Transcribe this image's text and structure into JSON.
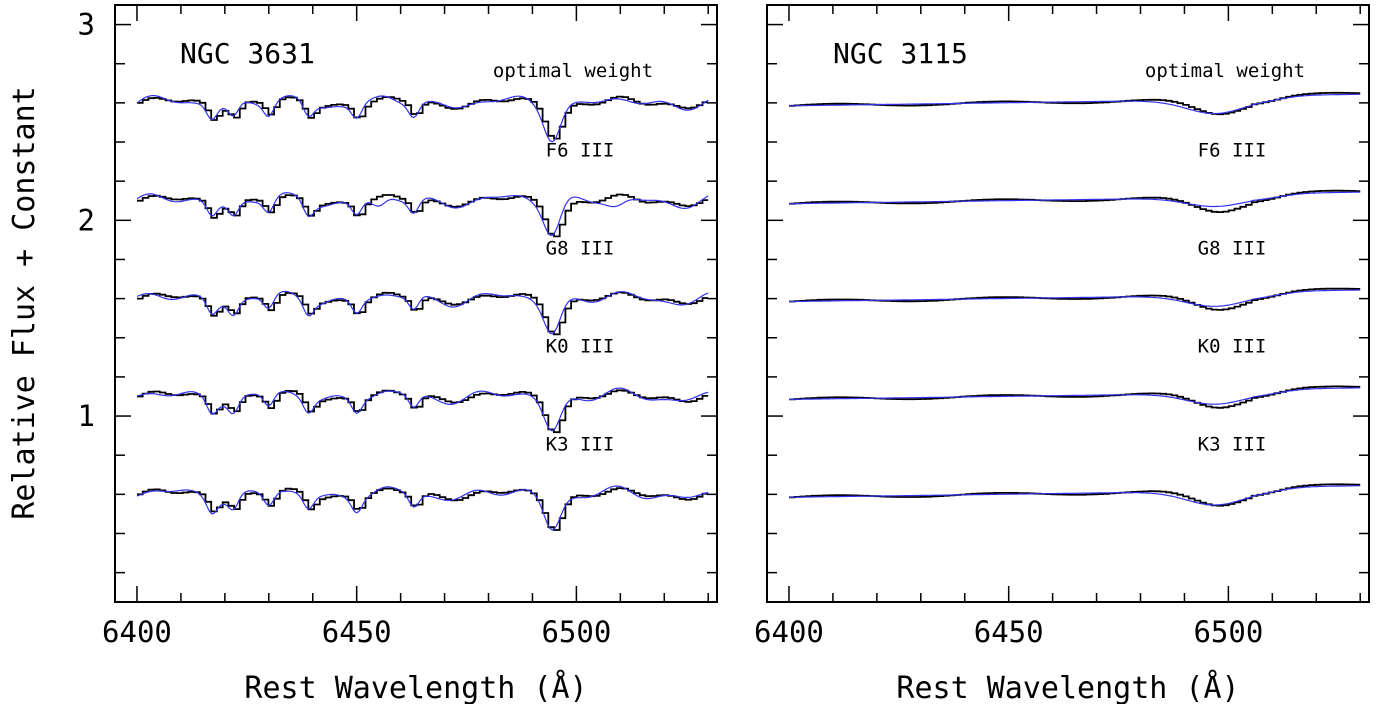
{
  "ylabel": "Relative Flux + Constant",
  "xlabel": "Rest Wavelength (Å)",
  "colors": {
    "data": "#000000",
    "model": "#3333ee"
  },
  "chart_data": [
    {
      "type": "line",
      "title": "NGC 3631",
      "xlim": [
        6395,
        6532
      ],
      "ylim": [
        0.05,
        3.1
      ],
      "x_ticks": [
        6400,
        6450,
        6500
      ],
      "y_ticks": [
        1,
        2,
        3
      ],
      "grid": false,
      "series_labels": [
        "optimal weight",
        "F6 III",
        "G8 III",
        "K0 III",
        "K3 III"
      ],
      "continuum_levels": [
        2.6,
        2.1,
        1.6,
        1.1,
        0.6
      ],
      "absorption_features_A": [
        6417,
        6422,
        6430,
        6439,
        6450,
        6463,
        6494.5
      ],
      "deepest_feature": {
        "x": 6495,
        "depth": 0.16
      }
    },
    {
      "type": "line",
      "title": "NGC 3115",
      "xlim": [
        6395,
        6532
      ],
      "ylim": [
        0.05,
        3.1
      ],
      "x_ticks": [
        6400,
        6450,
        6500
      ],
      "y_ticks": [],
      "grid": false,
      "series_labels": [
        "optimal weight",
        "F6 III",
        "G8 III",
        "K0 III",
        "K3 III"
      ],
      "continuum_levels": [
        2.6,
        2.1,
        1.6,
        1.1,
        0.6
      ],
      "deepest_feature": {
        "x": 6497,
        "depth": 0.07
      }
    }
  ]
}
